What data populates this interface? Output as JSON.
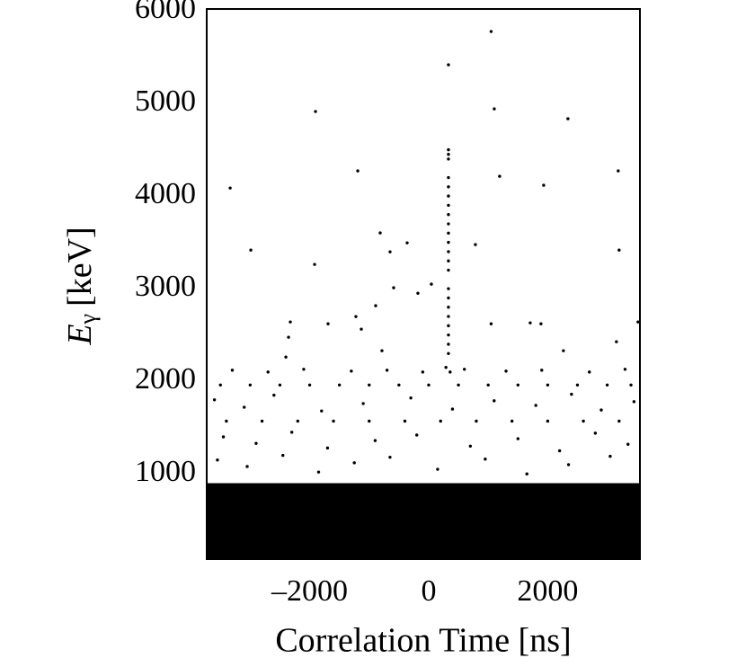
{
  "chart_data": {
    "type": "scatter",
    "xlabel": "Correlation Time [ns]",
    "ylabel": {
      "symbol": "E",
      "subscript": "γ",
      "unit": "[keV]"
    },
    "xlim": [
      -3730,
      3550
    ],
    "ylim": [
      80,
      6020
    ],
    "xticks": [
      {
        "value": -2000,
        "label": "–2000"
      },
      0,
      2000
    ],
    "yticks": [
      1000,
      2000,
      3000,
      4000,
      5000,
      6000
    ],
    "color": "#000000",
    "dense_region": [
      80,
      900
    ],
    "x": [
      1049,
      332,
      -1902,
      1102,
      2340,
      -1192,
      1192,
      -3336,
      1932,
      3185,
      -815,
      -362,
      -649,
      -2989,
      785,
      3200,
      -1917,
      -589,
      -181,
      45,
      -2325,
      -1691,
      -1223,
      -891,
      1049,
      1706,
      1887,
      3517,
      -2355,
      -1132,
      3155,
      2264,
      -785,
      -2400,
      332,
      332,
      332,
      332,
      332,
      332,
      332,
      332,
      332,
      332,
      332,
      332,
      332,
      332,
      332,
      332,
      332,
      332,
      332,
      332,
      332,
      332,
      290,
      360,
      -3500,
      -3000,
      -2500,
      -2000,
      -1500,
      -1000,
      -500,
      0,
      500,
      1000,
      1500,
      2000,
      2500,
      3000,
      3400,
      -3400,
      -2800,
      -2200,
      -1600,
      -1000,
      -400,
      200,
      800,
      1400,
      2000,
      2600,
      3200,
      -3300,
      -2700,
      -2100,
      -1300,
      -700,
      -100,
      600,
      1300,
      1900,
      2700,
      3300,
      -3600,
      -3100,
      -2600,
      -1800,
      -1100,
      -300,
      400,
      1100,
      1800,
      2400,
      2900,
      3450,
      -3450,
      -2900,
      -2300,
      -1700,
      -900,
      -200,
      700,
      1500,
      2200,
      2800,
      3350,
      -3550,
      -3050,
      -2450,
      -1850,
      -1250,
      -650,
      150,
      950,
      1650,
      2350,
      3050
    ],
    "y": [
      5777,
      5417,
      4913,
      4942,
      4835,
      4272,
      4214,
      4087,
      4117,
      4272,
      3602,
      3495,
      3398,
      3417,
      3476,
      3417,
      3262,
      3010,
      2951,
      3049,
      2641,
      2621,
      2699,
      2816,
      2621,
      2631,
      2621,
      2641,
      2476,
      2563,
      2427,
      2330,
      2330,
      2262,
      4500,
      4450,
      4400,
      4200,
      4100,
      4000,
      3900,
      3800,
      3700,
      3600,
      3500,
      3400,
      3300,
      3200,
      3000,
      2900,
      2800,
      2700,
      2600,
      2500,
      2400,
      2300,
      2150,
      2100,
      1960,
      1960,
      1960,
      1960,
      1960,
      1960,
      1960,
      1960,
      1960,
      1960,
      1960,
      1960,
      1960,
      1960,
      1960,
      1570,
      1570,
      1570,
      1570,
      1570,
      1570,
      1570,
      1570,
      1570,
      1570,
      1570,
      1570,
      2120,
      2100,
      2130,
      2110,
      2120,
      2100,
      2130,
      2110,
      2120,
      2100,
      2130,
      1800,
      1720,
      1850,
      1680,
      1760,
      1820,
      1700,
      1790,
      1740,
      1860,
      1690,
      1780,
      1400,
      1330,
      1450,
      1280,
      1360,
      1420,
      1300,
      1380,
      1250,
      1440,
      1320,
      1150,
      1080,
      1200,
      1020,
      1120,
      1180,
      1050,
      1160,
      1000,
      1100,
      1190
    ]
  }
}
